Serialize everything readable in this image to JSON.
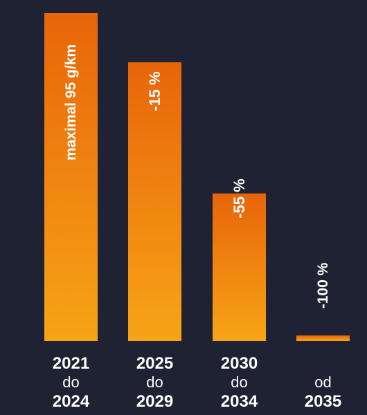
{
  "chart_data": {
    "type": "bar",
    "categories": [
      {
        "from": "2021",
        "connector": "do",
        "to": "2024"
      },
      {
        "from": "2025",
        "connector": "do",
        "to": "2029"
      },
      {
        "from": "2030",
        "connector": "do",
        "to": "2034"
      },
      {
        "from": "",
        "connector": "od",
        "to": "2035"
      }
    ],
    "values": [
      95,
      80.75,
      42.75,
      0
    ],
    "bar_labels": [
      "maximal 95 g/km",
      "-15 %",
      "-55 %",
      "-100 %"
    ],
    "ylim": [
      0,
      95
    ],
    "grid": false,
    "colors": {
      "background": "#1f2233",
      "bar_top": "#e8650a",
      "bar_bottom": "#f7a416",
      "text": "#ffffff"
    }
  }
}
